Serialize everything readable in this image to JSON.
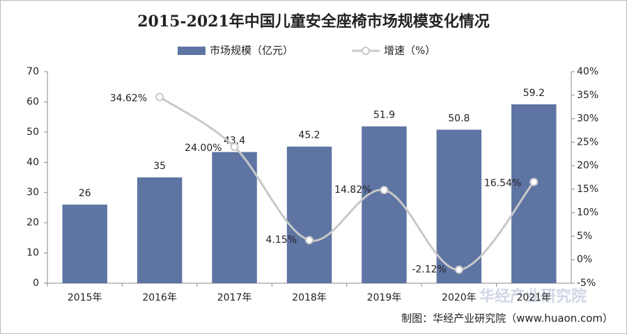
{
  "chart_data": {
    "type": "bar",
    "title": "2015-2021年中国儿童安全座椅市场规模变化情况",
    "categories": [
      "2015年",
      "2016年",
      "2017年",
      "2018年",
      "2019年",
      "2020年",
      "2021年"
    ],
    "series": [
      {
        "name": "市场规模（亿元）",
        "type": "bar",
        "color": "#5e74a3",
        "values": [
          26,
          35,
          43.4,
          45.2,
          51.9,
          50.8,
          59.2
        ]
      },
      {
        "name": "增速（%）",
        "type": "line",
        "axis": "y2",
        "color": "#c8c8c8",
        "values": [
          null,
          34.62,
          24.0,
          4.15,
          14.82,
          -2.12,
          16.54
        ],
        "value_labels": [
          null,
          "34.62%",
          "24.00%",
          "4.15%",
          "14.82%",
          "-2.12%",
          "16.54%"
        ]
      }
    ],
    "ylim": [
      0,
      70
    ],
    "yticks": [
      0,
      10,
      20,
      30,
      40,
      50,
      60,
      70
    ],
    "y2lim": [
      -5,
      40
    ],
    "y2ticks": [
      {
        "value": -5,
        "label": "-5%"
      },
      {
        "value": 0,
        "label": "0%"
      },
      {
        "value": 5,
        "label": "5%"
      },
      {
        "value": 10,
        "label": "10%"
      },
      {
        "value": 15,
        "label": "15%"
      },
      {
        "value": 20,
        "label": "20%"
      },
      {
        "value": 25,
        "label": "25%"
      },
      {
        "value": 30,
        "label": "30%"
      },
      {
        "value": 35,
        "label": "35%"
      },
      {
        "value": 40,
        "label": "40%"
      }
    ],
    "legend": "top",
    "source": "制图：华经产业研究院（www.huaon.com）",
    "watermark": "华经产业研究院"
  }
}
